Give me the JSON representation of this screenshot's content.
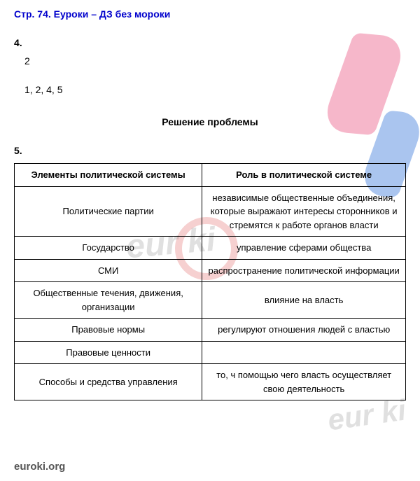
{
  "header": "Стр. 74. Еуроки – ДЗ без мороки",
  "q4": {
    "number": "4.",
    "line1": "2",
    "line2": "1, 2, 4, 5"
  },
  "section_title": "Решение проблемы",
  "q5": {
    "number": "5.",
    "table": {
      "columns": [
        "Элементы политической системы",
        "Роль в политической системе"
      ],
      "rows": [
        [
          "Политические партии",
          "независимые общественные объединения, которые выражают интересы сторонников и стремятся к работе органов власти"
        ],
        [
          "Государство",
          "управление сферами общества"
        ],
        [
          "СМИ",
          "распространение политической информации"
        ],
        [
          "Общественные течения, движения, организации",
          "влияние на власть"
        ],
        [
          "Правовые нормы",
          "регулируют отношения людей с властью"
        ],
        [
          "Правовые ценности",
          ""
        ],
        [
          "Способы и средства управления",
          "то, ч помощью чего власть осуществляет свою деятельность"
        ]
      ]
    }
  },
  "footer": "euroki.org",
  "watermark": {
    "text": "eur ki",
    "pink_color": "#e94b7b",
    "blue_color": "#2b6fd8"
  }
}
